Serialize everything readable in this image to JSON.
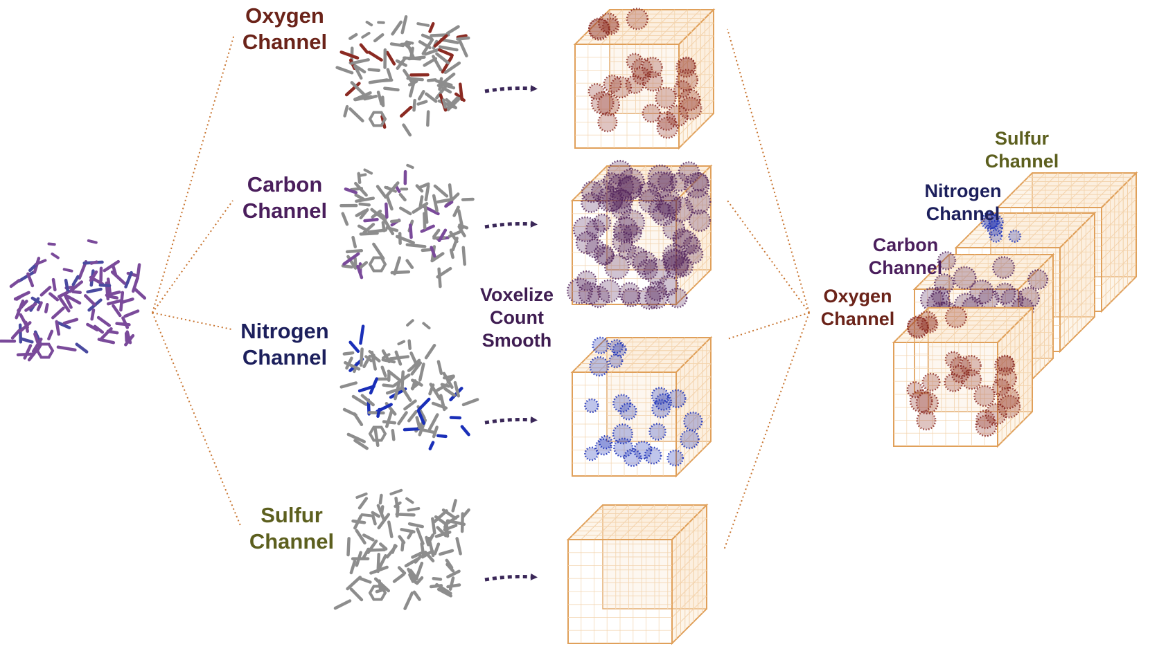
{
  "labels": {
    "oxygen": [
      "Oxygen",
      "Channel"
    ],
    "carbon": [
      "Carbon",
      "Channel"
    ],
    "nitrogen": [
      "Nitrogen",
      "Channel"
    ],
    "sulfur": [
      "Sulfur",
      "Channel"
    ],
    "process": [
      "Voxelize",
      "Count",
      "Smooth"
    ]
  },
  "colors": {
    "oxygen": "#6b2319",
    "carbon": "#4a1e5c",
    "nitrogen": "#1c1f5c",
    "sulfur": "#5c5f1e",
    "oxygen_dots": "#8b2a22",
    "carbon_dots": "#55285f",
    "nitrogen_dots": "#1a2fb8",
    "cube_edge": "#e0a05a",
    "cube_grid": "#f3d3ad",
    "connector": "#c8742f",
    "arrow": "#3a2758",
    "molecule_grey": "#8d8d8d",
    "molecule_purple": "#7a4a9a"
  }
}
